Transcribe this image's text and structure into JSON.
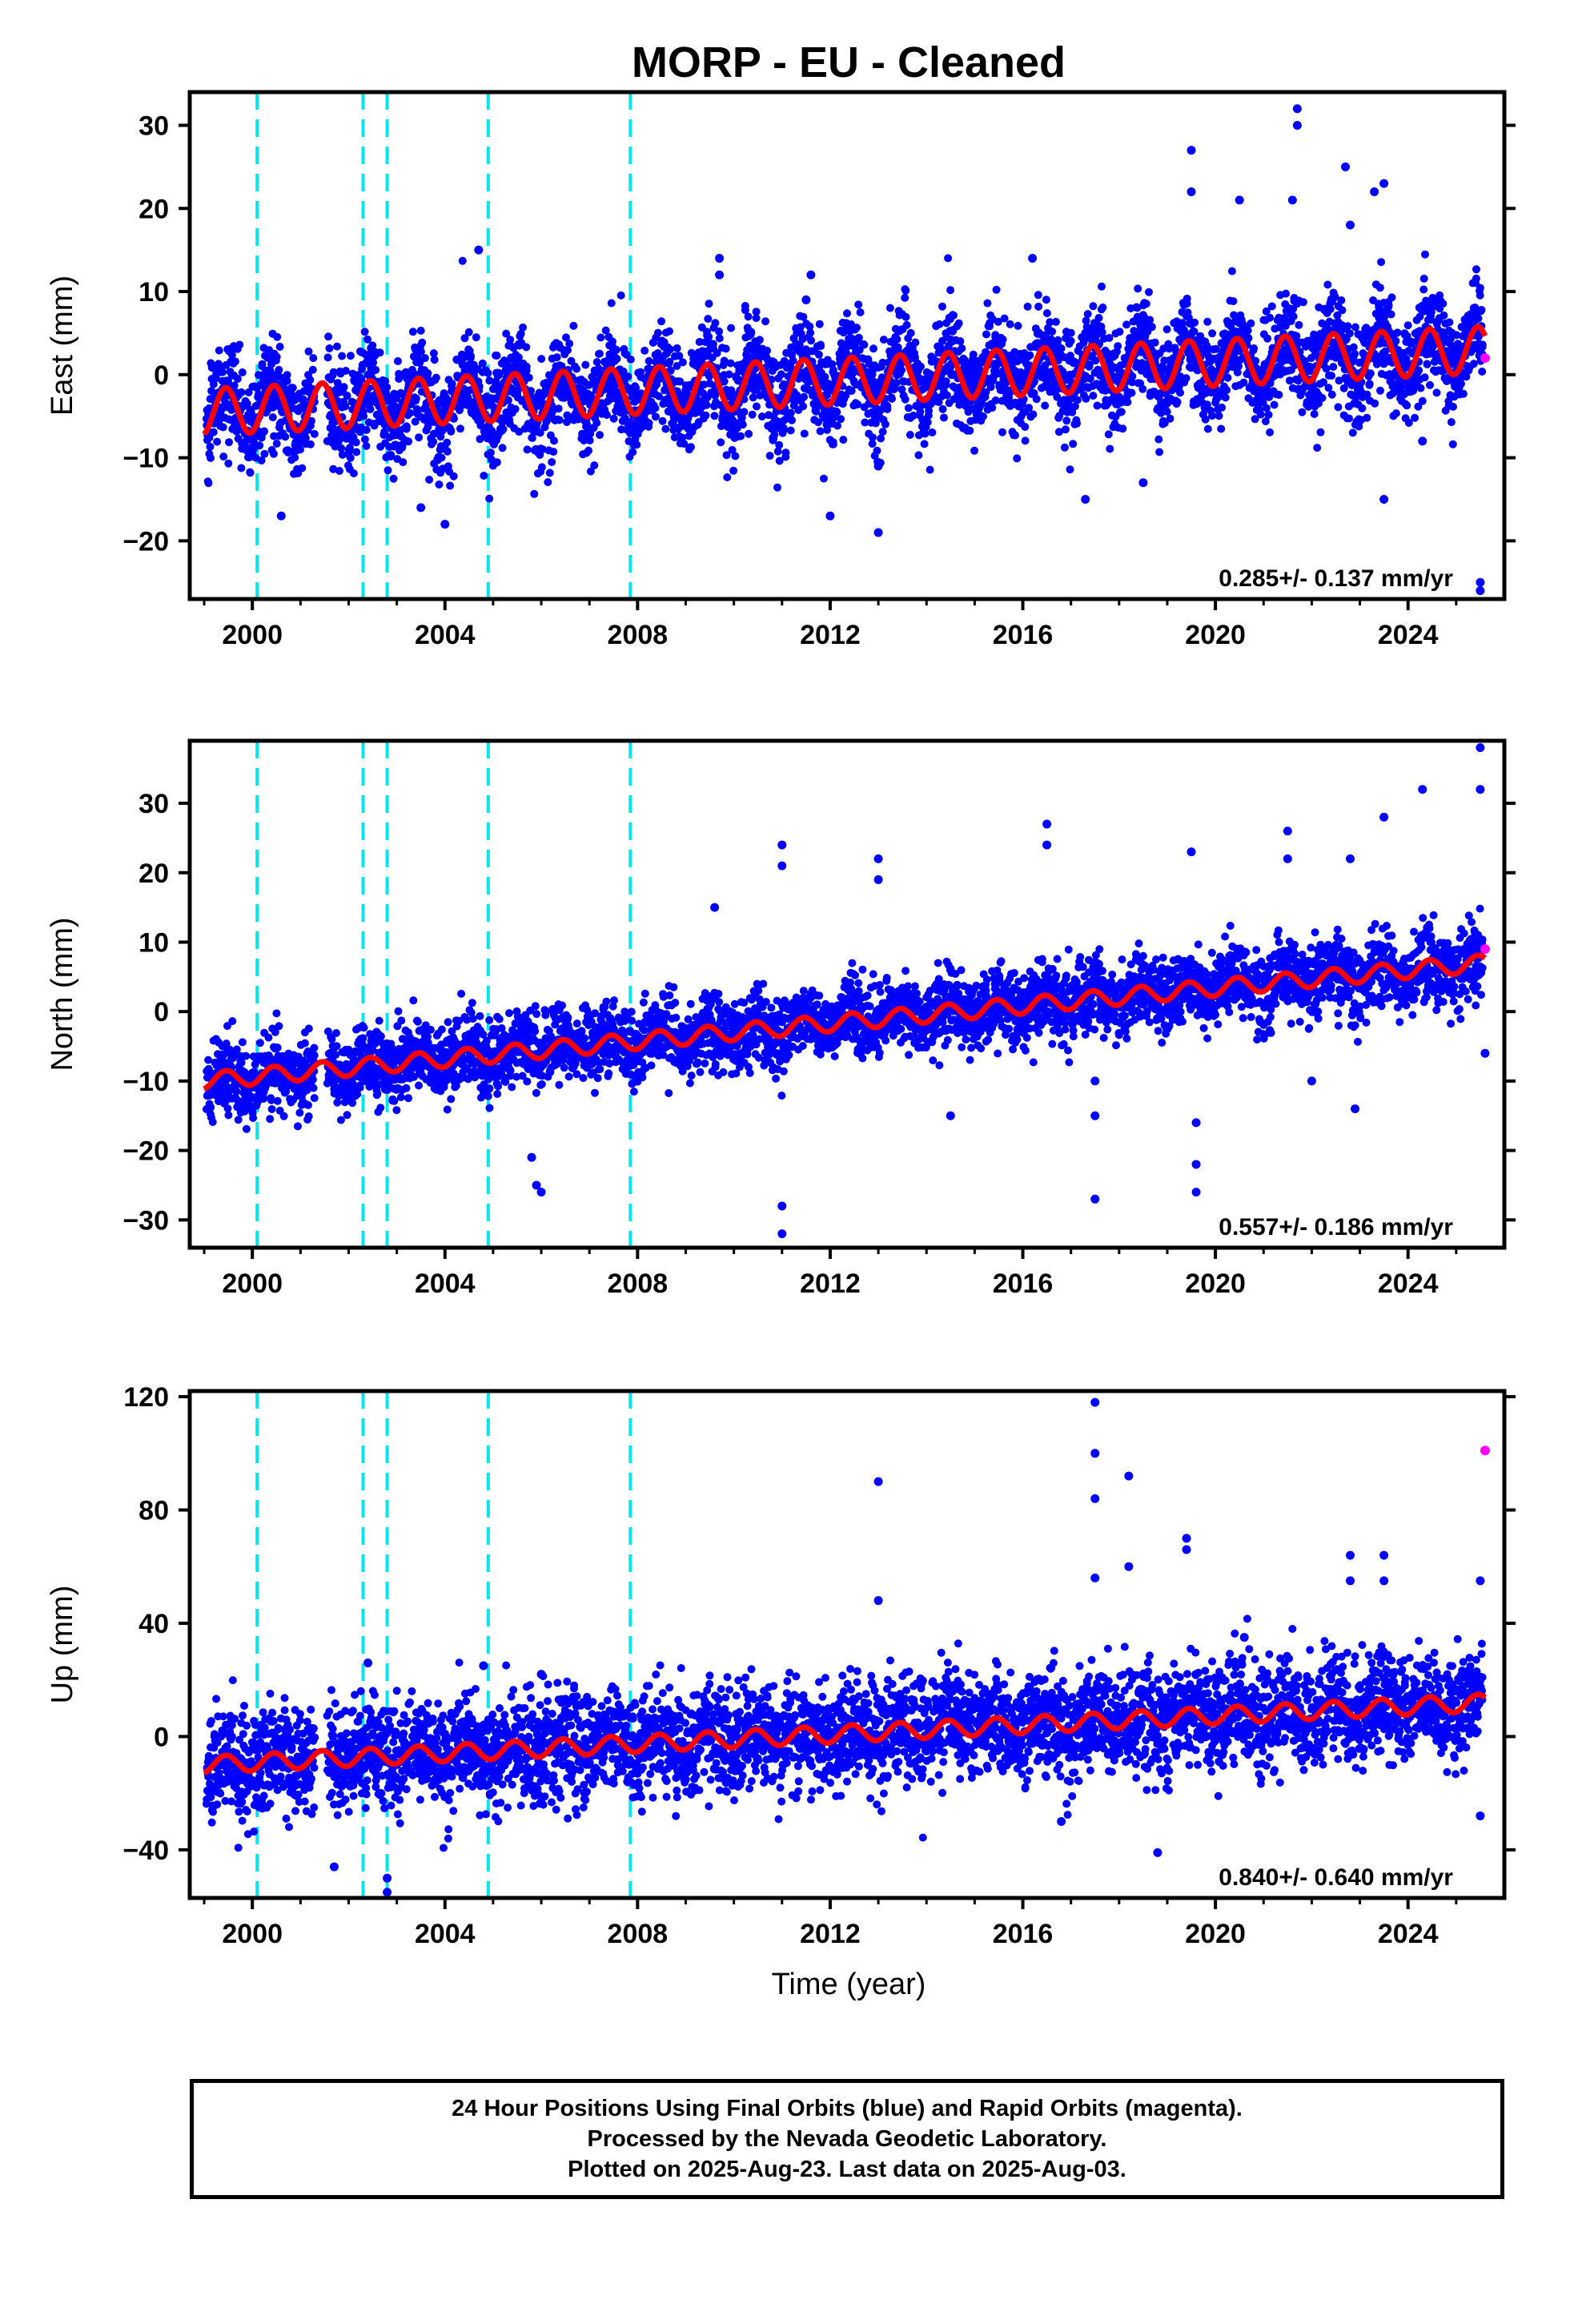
{
  "chart_data": {
    "title": "MORP  - EU - Cleaned",
    "xlabel": "Time (year)",
    "xlim": [
      1998.7,
      2026.0
    ],
    "xticks": [
      2000,
      2004,
      2008,
      2012,
      2016,
      2020,
      2024
    ],
    "equipment_change_lines": [
      2000.1,
      2002.3,
      2002.8,
      2004.9,
      2007.85
    ],
    "colors": {
      "final": "#0000ff",
      "rapid": "#ff00ff",
      "model": "#ff0000",
      "breaks": "#00e5ee"
    },
    "panels": [
      {
        "id": "east",
        "type": "scatter",
        "ylabel": "East (mm)",
        "ylim": [
          -27,
          34
        ],
        "yticks": [
          -20,
          -10,
          0,
          10,
          20,
          30
        ],
        "rate": "0.285+/- 0.137 mm/yr",
        "model_trend": {
          "start": -4.5,
          "end": 3.0,
          "annual_amplitude": 2.8
        },
        "scatter_spread": 3.0,
        "outliers": [
          [
            2000.6,
            -17
          ],
          [
            2003.5,
            -16
          ],
          [
            2004.0,
            -18
          ],
          [
            2004.7,
            15
          ],
          [
            2009.7,
            14
          ],
          [
            2009.7,
            12
          ],
          [
            2011.6,
            12
          ],
          [
            2011.5,
            9
          ],
          [
            2012.0,
            -17
          ],
          [
            2013.0,
            -19
          ],
          [
            2013.0,
            -11
          ],
          [
            2016.2,
            14
          ],
          [
            2017.3,
            -15
          ],
          [
            2018.5,
            -13
          ],
          [
            2019.5,
            27
          ],
          [
            2019.5,
            22
          ],
          [
            2020.5,
            21
          ],
          [
            2021.7,
            32
          ],
          [
            2021.7,
            30
          ],
          [
            2021.6,
            21
          ],
          [
            2022.7,
            25
          ],
          [
            2022.8,
            18
          ],
          [
            2023.5,
            23
          ],
          [
            2023.3,
            22
          ],
          [
            2023.5,
            -15
          ],
          [
            2024.3,
            -8
          ],
          [
            2025.5,
            -25
          ],
          [
            2025.5,
            -26
          ]
        ],
        "rapid_points": [
          [
            2025.6,
            2
          ]
        ]
      },
      {
        "id": "north",
        "type": "scatter",
        "ylabel": "North (mm)",
        "ylim": [
          -34,
          39
        ],
        "yticks": [
          -30,
          -20,
          -10,
          0,
          10,
          20,
          30
        ],
        "rate": "0.557+/- 0.186 mm/yr",
        "model_trend": {
          "start": -10.0,
          "end": 7.0,
          "annual_amplitude": 1.2
        },
        "scatter_spread": 2.6,
        "outliers": [
          [
            2005.8,
            -21
          ],
          [
            2005.9,
            -25
          ],
          [
            2006.0,
            -26
          ],
          [
            2009.6,
            15
          ],
          [
            2011.0,
            24
          ],
          [
            2011.0,
            21
          ],
          [
            2011.0,
            -28
          ],
          [
            2011.0,
            -32
          ],
          [
            2013.0,
            22
          ],
          [
            2013.0,
            19
          ],
          [
            2014.5,
            -15
          ],
          [
            2016.5,
            27
          ],
          [
            2016.5,
            24
          ],
          [
            2017.5,
            -10
          ],
          [
            2017.5,
            -15
          ],
          [
            2017.5,
            -27
          ],
          [
            2019.5,
            23
          ],
          [
            2019.6,
            -16
          ],
          [
            2019.6,
            -22
          ],
          [
            2019.6,
            -26
          ],
          [
            2021.5,
            26
          ],
          [
            2021.5,
            22
          ],
          [
            2022.0,
            -10
          ],
          [
            2022.8,
            22
          ],
          [
            2022.9,
            -14
          ],
          [
            2023.5,
            28
          ],
          [
            2024.3,
            32
          ],
          [
            2025.5,
            38
          ],
          [
            2025.5,
            32
          ],
          [
            2025.6,
            -6
          ]
        ],
        "rapid_points": [
          [
            2025.6,
            9
          ]
        ]
      },
      {
        "id": "up",
        "type": "scatter",
        "ylabel": "Up (mm)",
        "ylim": [
          -57,
          122
        ],
        "yticks": [
          -40,
          0,
          40,
          80,
          120
        ],
        "rate": "0.840+/- 0.640 mm/yr",
        "model_trend": {
          "start": -10.0,
          "end": 12.0,
          "annual_amplitude": 3.0
        },
        "scatter_spread": 9.0,
        "outliers": [
          [
            2001.7,
            -46
          ],
          [
            2002.4,
            26
          ],
          [
            2002.8,
            -55
          ],
          [
            2002.8,
            -50
          ],
          [
            2004.8,
            25
          ],
          [
            2006.0,
            22
          ],
          [
            2013.0,
            90
          ],
          [
            2013.0,
            48
          ],
          [
            2016.8,
            -30
          ],
          [
            2017.5,
            118
          ],
          [
            2017.5,
            100
          ],
          [
            2017.5,
            84
          ],
          [
            2017.5,
            56
          ],
          [
            2018.2,
            92
          ],
          [
            2018.2,
            60
          ],
          [
            2018.8,
            -41
          ],
          [
            2019.4,
            70
          ],
          [
            2019.4,
            66
          ],
          [
            2020.6,
            35
          ],
          [
            2022.8,
            64
          ],
          [
            2022.8,
            55
          ],
          [
            2023.5,
            64
          ],
          [
            2023.5,
            55
          ],
          [
            2025.5,
            55
          ],
          [
            2025.5,
            -28
          ]
        ],
        "rapid_points": [
          [
            2025.6,
            101
          ]
        ]
      }
    ]
  },
  "footer": {
    "line1": "24 Hour Positions Using Final Orbits (blue) and Rapid Orbits (magenta).",
    "line2": "Processed by the Nevada Geodetic Laboratory.",
    "line3": "Plotted on 2025-Aug-23. Last data on 2025-Aug-03."
  }
}
